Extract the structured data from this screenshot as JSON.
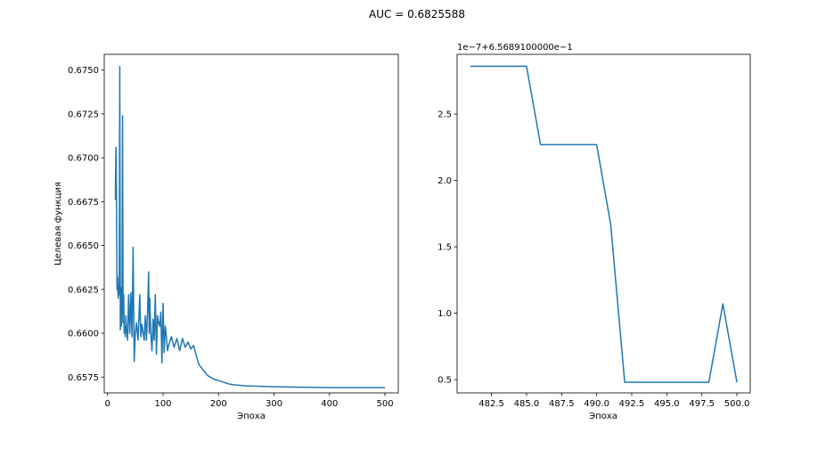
{
  "figure": {
    "suptitle": "AUC = 0.6825588"
  },
  "chart_data": [
    {
      "type": "line",
      "title": "",
      "xlabel": "Эпоха",
      "ylabel": "Целевая функция",
      "xlim": [
        -6,
        524
      ],
      "ylim": [
        0.6566,
        0.6759
      ],
      "xticks": [
        0,
        100,
        200,
        300,
        400,
        500
      ],
      "xtick_labels": [
        "0",
        "100",
        "200",
        "300",
        "400",
        "500"
      ],
      "yticks": [
        0.6575,
        0.66,
        0.6625,
        0.665,
        0.6675,
        0.67,
        0.6725,
        0.675
      ],
      "ytick_labels": [
        "0.6575",
        "0.6600",
        "0.6625",
        "0.6650",
        "0.6675",
        "0.6700",
        "0.6725",
        "0.6750"
      ],
      "grid": false,
      "color": "#1f77b4",
      "series": [
        {
          "x": [
            14,
            15,
            16,
            17,
            18,
            19,
            20,
            21,
            22,
            23,
            24,
            25,
            26,
            27,
            28,
            29,
            30,
            31,
            32,
            33,
            34,
            35,
            36,
            38,
            40,
            42,
            44,
            46,
            48,
            50,
            52,
            55,
            58,
            60,
            62,
            64,
            66,
            68,
            70,
            72,
            74,
            75,
            76,
            78,
            80,
            82,
            84,
            86,
            88,
            90,
            92,
            94,
            96,
            98,
            100,
            102,
            104,
            106,
            108,
            110,
            115,
            120,
            125,
            130,
            135,
            140,
            145,
            150,
            155,
            160,
            165,
            170,
            175,
            180,
            190,
            200,
            210,
            220,
            230,
            250,
            300,
            400,
            500
          ],
          "y": [
            0.6676,
            0.6706,
            0.668,
            0.6625,
            0.6632,
            0.662,
            0.6628,
            0.6622,
            0.6752,
            0.6602,
            0.6626,
            0.6604,
            0.6618,
            0.6724,
            0.6606,
            0.6622,
            0.66,
            0.6604,
            0.6598,
            0.661,
            0.6602,
            0.66,
            0.6596,
            0.6622,
            0.66,
            0.6623,
            0.6598,
            0.6649,
            0.6584,
            0.66,
            0.6606,
            0.6596,
            0.6622,
            0.6598,
            0.6605,
            0.66,
            0.6596,
            0.661,
            0.6596,
            0.6612,
            0.6635,
            0.66,
            0.662,
            0.66,
            0.659,
            0.6608,
            0.6596,
            0.6622,
            0.6588,
            0.661,
            0.6606,
            0.6604,
            0.6612,
            0.6583,
            0.6617,
            0.6589,
            0.6604,
            0.6598,
            0.659,
            0.6593,
            0.6598,
            0.6592,
            0.6597,
            0.659,
            0.6597,
            0.6592,
            0.6595,
            0.6591,
            0.6593,
            0.6587,
            0.6582,
            0.658,
            0.6578,
            0.6576,
            0.6574,
            0.6573,
            0.6572,
            0.6571,
            0.65705,
            0.657,
            0.65695,
            0.6569,
            0.6569
          ]
        }
      ]
    },
    {
      "type": "line",
      "title": "",
      "xlabel": "Эпоха",
      "ylabel": "",
      "offset_label": "1e−7+6.5689100000e−1",
      "xlim": [
        480.05,
        500.95
      ],
      "ylim": [
        0.4,
        2.95
      ],
      "xticks": [
        482.5,
        485.0,
        487.5,
        490.0,
        492.5,
        495.0,
        497.5,
        500.0
      ],
      "xtick_labels": [
        "482.5",
        "485.0",
        "487.5",
        "490.0",
        "492.5",
        "495.0",
        "497.5",
        "500.0"
      ],
      "yticks": [
        0.5,
        1.0,
        1.5,
        2.0,
        2.5
      ],
      "ytick_labels": [
        "0.5",
        "1.0",
        "1.5",
        "2.0",
        "2.5"
      ],
      "grid": false,
      "color": "#1f77b4",
      "series": [
        {
          "x": [
            481,
            482,
            483,
            484,
            485,
            486,
            487,
            488,
            489,
            490,
            491,
            492,
            493,
            494,
            495,
            496,
            497,
            498,
            499,
            500
          ],
          "y": [
            2.86,
            2.86,
            2.86,
            2.86,
            2.86,
            2.27,
            2.27,
            2.27,
            2.27,
            2.27,
            1.67,
            0.48,
            0.48,
            0.48,
            0.48,
            0.48,
            0.48,
            0.48,
            1.07,
            0.48
          ]
        }
      ]
    }
  ]
}
